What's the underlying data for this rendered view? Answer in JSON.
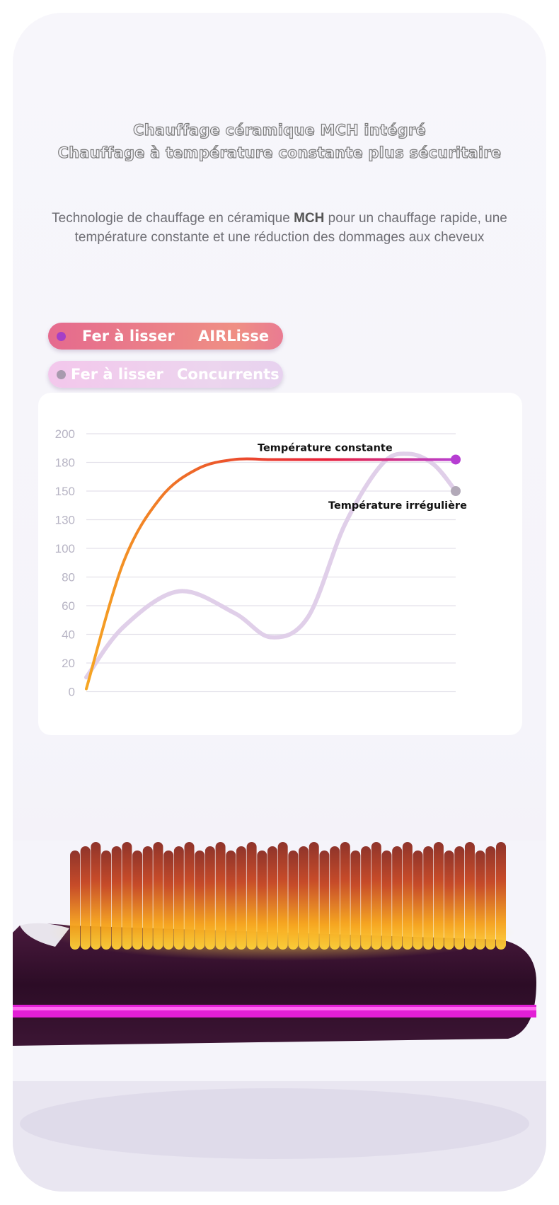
{
  "header": {
    "line1": "Chauffage céramique MCH intégré",
    "line2": "Chauffage à température constante plus sécuritaire"
  },
  "description": {
    "before": "Technologie de chauffage en céramique ",
    "bold": "MCH",
    "after": " pour un chauffage rapide, une température constante et une réduction des dommages aux cheveux"
  },
  "legend": [
    {
      "label_a": "Fer à lisser",
      "label_b": "AIRLisse",
      "dot_color": "#a53fc6"
    },
    {
      "label_a": "Fer à lisser",
      "label_b": "Concurrents",
      "dot_color": "#a89aae"
    }
  ],
  "chart_data": {
    "type": "line",
    "y_ticks": [
      0,
      20,
      40,
      60,
      80,
      100,
      130,
      150,
      180,
      200
    ],
    "grid": true,
    "series": [
      {
        "key": "airlisse",
        "x": [
          0,
          0.1,
          0.2,
          0.3,
          0.4,
          0.5,
          0.6,
          0.7,
          0.8,
          0.9,
          1.0
        ],
        "values": [
          2,
          90,
          145,
          173,
          182,
          182,
          182,
          182,
          182,
          182,
          182
        ],
        "gradient": [
          "#f6a623",
          "#ec5a2a",
          "#e8203a",
          "#b93fd0"
        ]
      },
      {
        "key": "concurrents",
        "x": [
          0,
          0.1,
          0.25,
          0.4,
          0.5,
          0.6,
          0.7,
          0.8,
          0.87,
          0.94,
          1.0
        ],
        "values": [
          10,
          45,
          70,
          55,
          38,
          52,
          125,
          178,
          186,
          178,
          150
        ],
        "color": "#e0cfe9"
      }
    ],
    "annotations": [
      {
        "text": "Température constante",
        "at_series": "airlisse"
      },
      {
        "text": "Température irrégulière",
        "at_series": "concurrents"
      }
    ]
  }
}
